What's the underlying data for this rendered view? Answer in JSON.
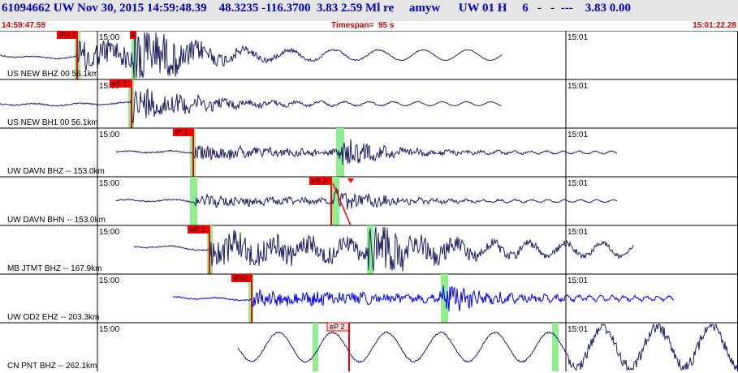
{
  "header": {
    "title": "61094662 UW Nov 30, 2015 14:59:48.39    48.3235 -116.3700  3.83 2.59 Ml re     amyw      UW 01 H     6   -   -  ---    3.83 0.00",
    "start_time": "14:59:47.59",
    "timespan": "Timespan=  95 s",
    "end_time": "15:01:22.28"
  },
  "colors": {
    "trace": "#1e1e64",
    "trace_blue": "#0000ff",
    "pick_red": "#ff0000",
    "window_green": "#90ee90"
  },
  "time_ticks": [
    "15:00",
    "15:01"
  ],
  "channels": [
    {
      "label": "US NEW BHZ 00 56.1km",
      "picks": [
        "iPd 1",
        "S"
      ]
    },
    {
      "label": "US NEW BH1 00 56.1km",
      "picks": [
        "eS 1"
      ]
    },
    {
      "label": "UW DAVN BHZ -- 153.0km",
      "picks": [
        "iP 1"
      ]
    },
    {
      "label": "UW DAVN BHN -- 153.0km",
      "picks": [
        "eS 2"
      ]
    },
    {
      "label": "MB JTMT BHZ -- 167.9km",
      "picks": [
        "eP 1"
      ]
    },
    {
      "label": "UW OD2 EHZ -- 203.3km",
      "picks": [
        "iPd1"
      ]
    },
    {
      "label": "CN PNT BHZ -- 262.1km",
      "picks": [
        "eP 2"
      ]
    }
  ]
}
